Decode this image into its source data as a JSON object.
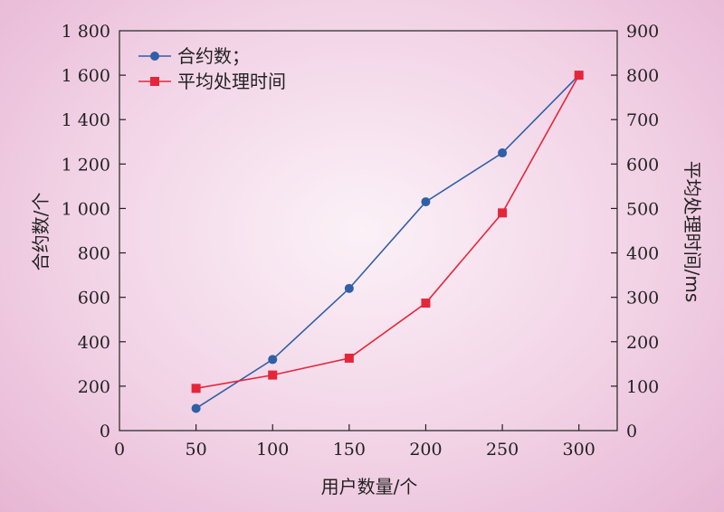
{
  "chart_data": {
    "type": "line",
    "x": [
      50,
      100,
      150,
      200,
      250,
      300
    ],
    "xlabel": "用户数量/个",
    "ylabel_left": "合约数/个",
    "ylabel_right": "平均处理时间/ms",
    "xlim": [
      0,
      325
    ],
    "ylim_left": [
      0,
      1800
    ],
    "ylim_right": [
      0,
      900
    ],
    "x_ticks": [
      0,
      50,
      100,
      150,
      200,
      250,
      300
    ],
    "x_tick_labels": [
      "0",
      "50",
      "100",
      "150",
      "200",
      "250",
      "300"
    ],
    "y_left_ticks": [
      0,
      200,
      400,
      600,
      800,
      1000,
      1200,
      1400,
      1600,
      1800
    ],
    "y_left_tick_labels": [
      "0",
      "200",
      "400",
      "600",
      "800",
      "1 000",
      "1 200",
      "1 400",
      "1 600",
      "1 800"
    ],
    "y_right_ticks": [
      0,
      100,
      200,
      300,
      400,
      500,
      600,
      700,
      800,
      900
    ],
    "y_right_tick_labels": [
      "0",
      "100",
      "200",
      "300",
      "400",
      "500",
      "600",
      "700",
      "800",
      "900"
    ],
    "grid": false,
    "legend_position": "top-left",
    "series": [
      {
        "name": "合约数；",
        "axis": "left",
        "marker": "circle",
        "color": "#2f5fa7",
        "values": [
          100,
          320,
          640,
          1030,
          1250,
          1600
        ]
      },
      {
        "name": "平均处理时间",
        "axis": "right",
        "marker": "square",
        "color": "#e5263a",
        "values": [
          95,
          125,
          163,
          287,
          490,
          800
        ]
      }
    ]
  }
}
